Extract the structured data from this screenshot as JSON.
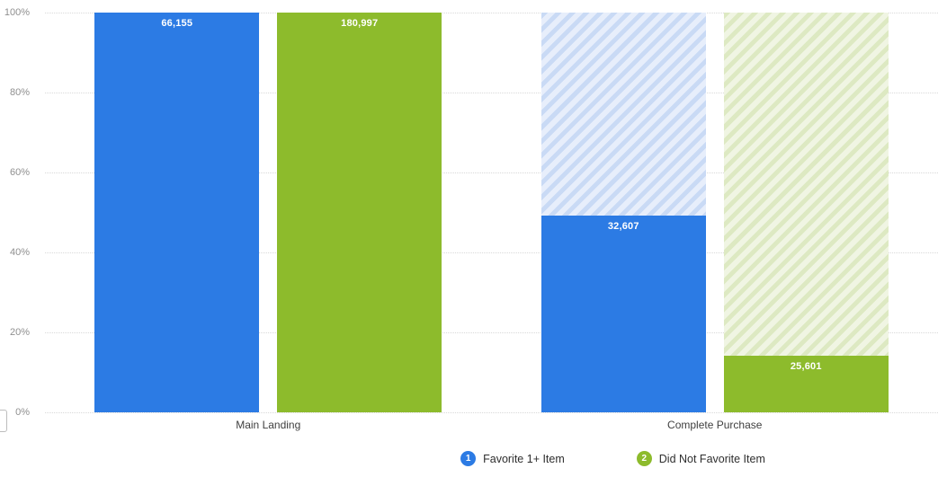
{
  "chart_data": {
    "type": "bar",
    "subtype": "funnel-conversion",
    "title": "",
    "xlabel": "",
    "ylabel": "",
    "ylim": [
      0,
      100
    ],
    "y_tick_step_percent": 20,
    "grid": "dotted-horizontal",
    "legend_position": "bottom",
    "y_ticks": [
      "100%",
      "80%",
      "60%",
      "40%",
      "20%",
      "0%"
    ],
    "categories": [
      "Main Landing",
      "Complete Purchase"
    ],
    "series": [
      {
        "name": "Favorite 1+ Item",
        "marker": "1",
        "color": "#2c7be4",
        "dropoff_bg": "#e7eefb",
        "dropoff_stripe": "#c9daf5",
        "values": [
          66155,
          32607
        ],
        "labels": [
          "66,155",
          "32,607"
        ],
        "percents": [
          100,
          49.29
        ]
      },
      {
        "name": "Did Not Favorite Item",
        "marker": "2",
        "color": "#8dbb2c",
        "dropoff_bg": "#f0f5e3",
        "dropoff_stripe": "#dde9c2",
        "values": [
          180997,
          25601
        ],
        "labels": [
          "180,997",
          "25,601"
        ],
        "percents": [
          100,
          14.14
        ]
      }
    ]
  },
  "colors": {
    "gridline": "#d9d9d9",
    "y_tick_text": "#8f8f8f",
    "x_label_text": "#3f3f3f",
    "legend_text": "#2e2e2e",
    "bar_value_text": "#ffffff"
  }
}
